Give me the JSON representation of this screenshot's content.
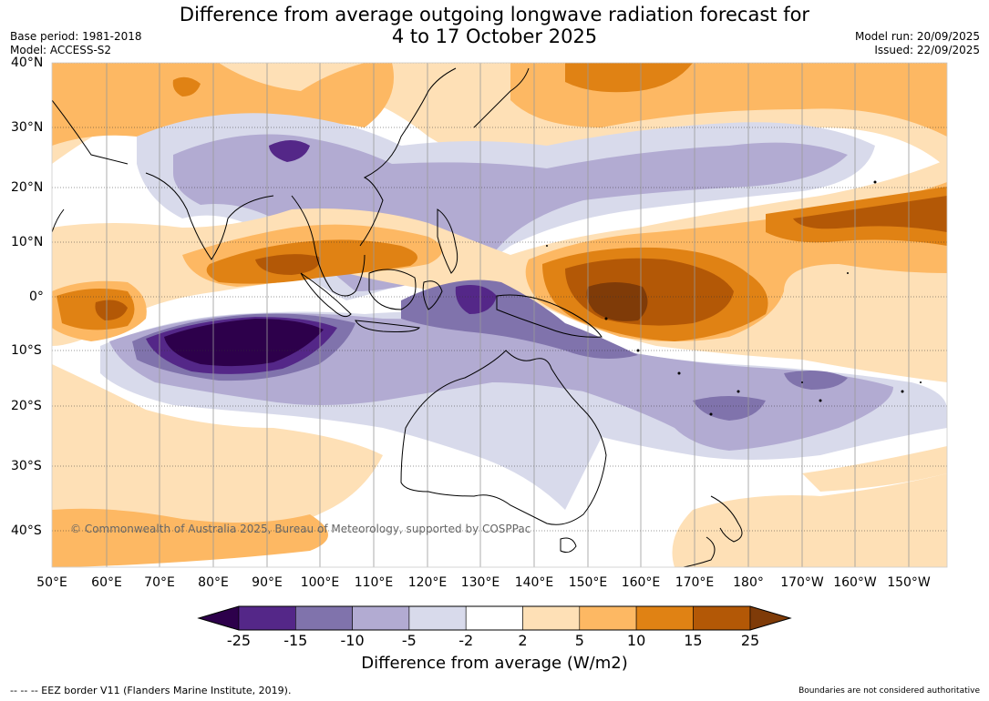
{
  "header": {
    "title_line1": "Difference from average outgoing longwave radiation forecast for",
    "title_line2": "4 to 17 October 2025",
    "base_period": "Base period: 1981-2018",
    "model": "Model: ACCESS-S2",
    "model_run": "Model run: 20/09/2025",
    "issued": "Issued: 22/09/2025"
  },
  "map": {
    "lat_labels": [
      "40°N",
      "30°N",
      "20°N",
      "10°N",
      "0°",
      "10°S",
      "20°S",
      "30°S",
      "40°S"
    ],
    "lon_labels": [
      "50°E",
      "60°E",
      "70°E",
      "80°E",
      "90°E",
      "100°E",
      "110°E",
      "120°E",
      "130°E",
      "140°E",
      "150°E",
      "160°E",
      "170°E",
      "180°",
      "170°W",
      "160°W",
      "150°W"
    ],
    "copyright": "© Commonwealth of Australia 2025, Bureau of Meteorology, supported by COSPPac",
    "anomalies": [
      {
        "region": "central tropical Indian Ocean",
        "lon": 90,
        "lat": -7,
        "value": -25
      },
      {
        "region": "equatorial western Pacific",
        "lon": 162,
        "lat": 0,
        "value": 25
      },
      {
        "region": "western equatorial Indian Ocean",
        "lon": 60,
        "lat": -2,
        "value": 20
      },
      {
        "region": "tropical North Pacific",
        "lon": 180,
        "lat": 12,
        "value": 15
      },
      {
        "region": "Indonesia / Banda Sea",
        "lon": 128,
        "lat": -1,
        "value": -15
      },
      {
        "region": "South Pacific convergence",
        "lon": 165,
        "lat": -15,
        "value": -10
      },
      {
        "region": "Bay of Bengal / Thailand",
        "lon": 100,
        "lat": 10,
        "value": 10
      },
      {
        "region": "Northern Australia",
        "lon": 135,
        "lat": -20,
        "value": -5
      }
    ]
  },
  "colorbar": {
    "levels": [
      "-25",
      "-15",
      "-10",
      "-5",
      "-2",
      "2",
      "5",
      "10",
      "15",
      "25"
    ],
    "colors": [
      "#2d004b",
      "#542788",
      "#8073ac",
      "#b2abd2",
      "#d8daeb",
      "#ffffff",
      "#fee0b6",
      "#fdb863",
      "#e08214",
      "#b35806",
      "#7f3b08"
    ],
    "label": "Difference from average (W/m2)"
  },
  "footer": {
    "eez": "--  --  -- EEZ border V11 (Flanders Marine Institute, 2019).",
    "note": "Boundaries are not considered authoritative"
  }
}
